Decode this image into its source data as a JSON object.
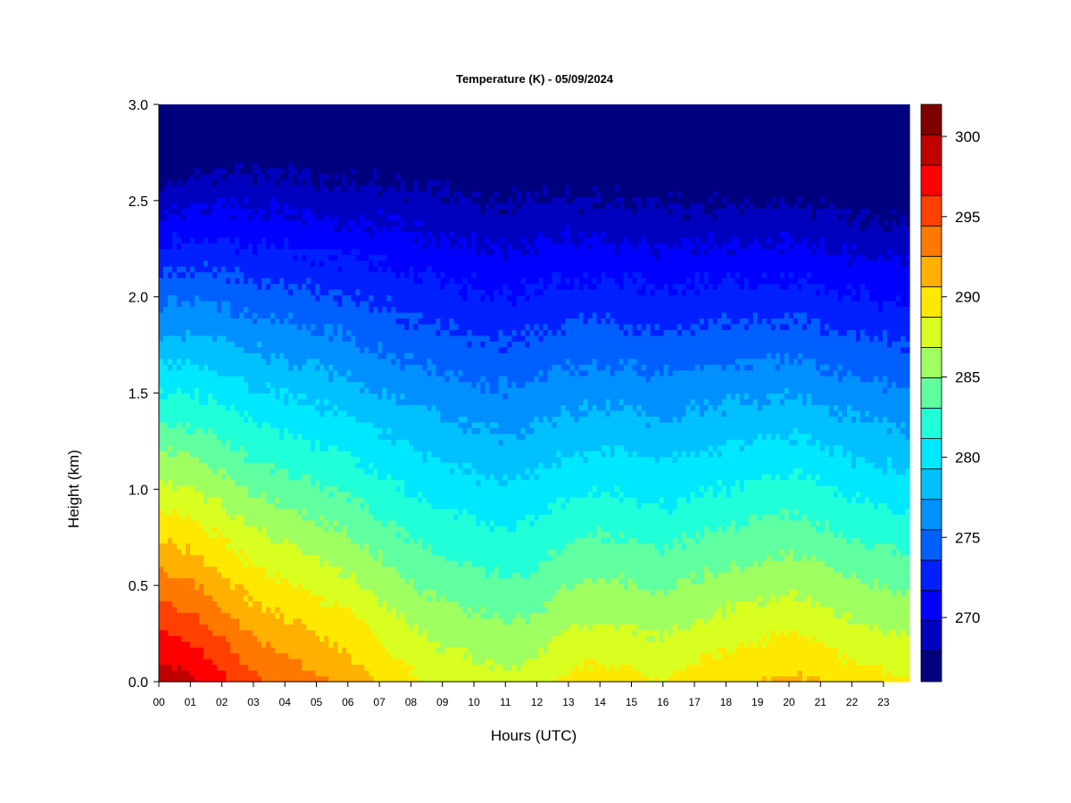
{
  "chart_data": {
    "type": "heatmap",
    "title": "Temperature (K) - 05/09/2024",
    "xlabel": "Hours (UTC)",
    "ylabel": "Height (km)",
    "x_ticks": [
      "00",
      "01",
      "02",
      "03",
      "04",
      "05",
      "06",
      "07",
      "08",
      "09",
      "10",
      "11",
      "12",
      "13",
      "14",
      "15",
      "16",
      "17",
      "18",
      "19",
      "20",
      "21",
      "22",
      "23"
    ],
    "xlim": [
      0,
      24
    ],
    "y_ticks": [
      "0.0",
      "0.5",
      "1.0",
      "1.5",
      "2.0",
      "2.5",
      "3.0"
    ],
    "ylim": [
      0,
      3
    ],
    "colorbar": {
      "label_ticks": [
        "270",
        "275",
        "280",
        "285",
        "290",
        "295",
        "300"
      ],
      "tick_values": [
        270,
        275,
        280,
        285,
        290,
        295,
        300
      ],
      "range": [
        266,
        302
      ],
      "levels": [
        266,
        268,
        270,
        272,
        274,
        276,
        278,
        280,
        282,
        284,
        286,
        288,
        290,
        292,
        294,
        296,
        298,
        300,
        302
      ],
      "colors": [
        "#00007f",
        "#0000bf",
        "#0000ff",
        "#0020ff",
        "#0060ff",
        "#0090ff",
        "#00c0ff",
        "#00e8ff",
        "#20ffd8",
        "#60ffa0",
        "#a0ff60",
        "#d8ff20",
        "#ffe800",
        "#ffb000",
        "#ff7800",
        "#ff4000",
        "#ff0000",
        "#c00000",
        "#800000"
      ]
    },
    "profiles": [
      {
        "hour": 0,
        "surface_temp": 301.5,
        "lapse_k_per_km": 13.0
      },
      {
        "hour": 1,
        "surface_temp": 300.5,
        "lapse_k_per_km": 12.4
      },
      {
        "hour": 2,
        "surface_temp": 298.5,
        "lapse_k_per_km": 11.5
      },
      {
        "hour": 3,
        "surface_temp": 296.5,
        "lapse_k_per_km": 10.8
      },
      {
        "hour": 4,
        "surface_temp": 295.5,
        "lapse_k_per_km": 10.4
      },
      {
        "hour": 5,
        "surface_temp": 294.5,
        "lapse_k_per_km": 10.1
      },
      {
        "hour": 6,
        "surface_temp": 293.5,
        "lapse_k_per_km": 9.8
      },
      {
        "hour": 7,
        "surface_temp": 292.0,
        "lapse_k_per_km": 9.2
      },
      {
        "hour": 8,
        "surface_temp": 290.5,
        "lapse_k_per_km": 8.7
      },
      {
        "hour": 9,
        "surface_temp": 289.5,
        "lapse_k_per_km": 8.4
      },
      {
        "hour": 10,
        "surface_temp": 289.0,
        "lapse_k_per_km": 8.3
      },
      {
        "hour": 11,
        "surface_temp": 288.5,
        "lapse_k_per_km": 8.2
      },
      {
        "hour": 12,
        "surface_temp": 289.0,
        "lapse_k_per_km": 8.3
      },
      {
        "hour": 13,
        "surface_temp": 290.5,
        "lapse_k_per_km": 8.9
      },
      {
        "hour": 14,
        "surface_temp": 291.0,
        "lapse_k_per_km": 9.1
      },
      {
        "hour": 15,
        "surface_temp": 290.5,
        "lapse_k_per_km": 8.9
      },
      {
        "hour": 16,
        "surface_temp": 290.0,
        "lapse_k_per_km": 8.8
      },
      {
        "hour": 17,
        "surface_temp": 291.0,
        "lapse_k_per_km": 9.2
      },
      {
        "hour": 18,
        "surface_temp": 291.5,
        "lapse_k_per_km": 9.4
      },
      {
        "hour": 19,
        "surface_temp": 292.0,
        "lapse_k_per_km": 9.6
      },
      {
        "hour": 20,
        "surface_temp": 292.5,
        "lapse_k_per_km": 9.8
      },
      {
        "hour": 21,
        "surface_temp": 292.0,
        "lapse_k_per_km": 9.7
      },
      {
        "hour": 22,
        "surface_temp": 291.0,
        "lapse_k_per_km": 9.4
      },
      {
        "hour": 23,
        "surface_temp": 290.5,
        "lapse_k_per_km": 9.3
      },
      {
        "hour": 24,
        "surface_temp": 290.0,
        "lapse_k_per_km": 9.2
      }
    ]
  }
}
